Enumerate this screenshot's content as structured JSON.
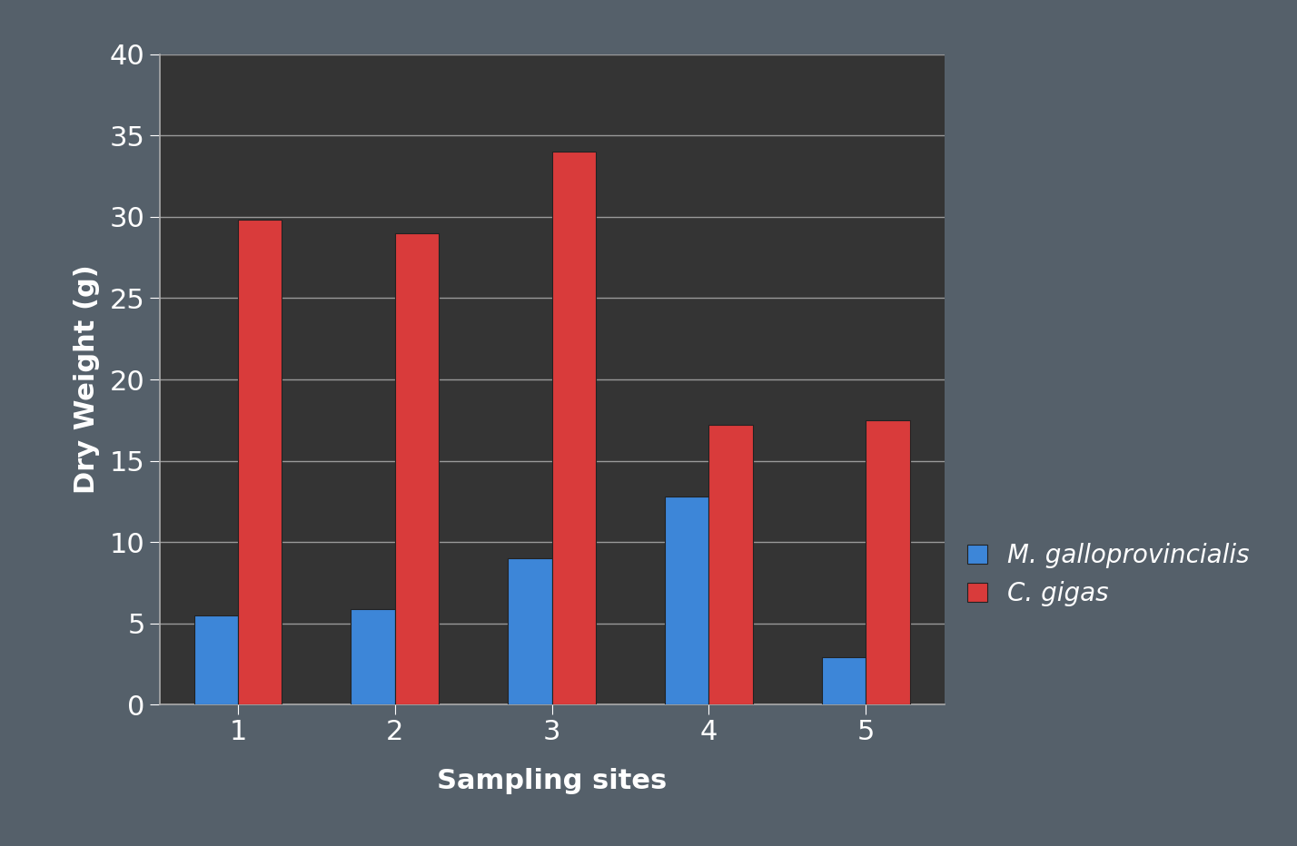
{
  "chart_data": {
    "type": "bar",
    "x_label": "Sampling sites",
    "y_label": "Dry Weight (g)",
    "categories": [
      "1",
      "2",
      "3",
      "4",
      "5"
    ],
    "series": [
      {
        "name": "M. galloprovincialis",
        "color": "#3d86d8",
        "values": [
          5.5,
          5.9,
          9.0,
          12.8,
          2.9
        ]
      },
      {
        "name": "C. gigas",
        "color": "#d93b3b",
        "values": [
          29.8,
          29.0,
          34.0,
          17.2,
          17.5
        ]
      }
    ],
    "ylim": [
      0,
      40
    ],
    "yticks": [
      0,
      5,
      10,
      15,
      20,
      25,
      30,
      35,
      40
    ],
    "grid": true,
    "legend": "center left"
  }
}
